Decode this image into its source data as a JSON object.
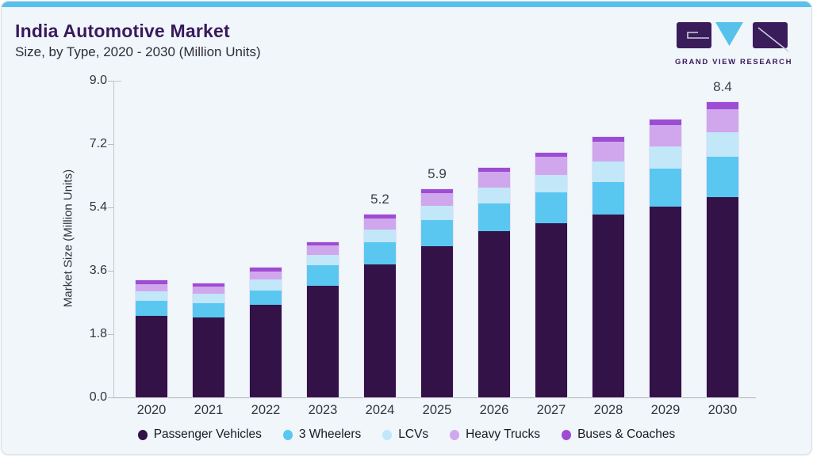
{
  "page": {
    "title": "India Automotive Market",
    "subtitle": "Size, by Type, 2020 - 2030 (Million Units)",
    "brand_name": "GRAND VIEW RESEARCH",
    "colors": {
      "accent_bar": "#57c1ec",
      "card_bg": "#f0f6fa",
      "title": "#39195c",
      "logo_block": "#3b1c5a",
      "logo_triangle": "#56c2ec"
    }
  },
  "chart_data": {
    "type": "bar",
    "stacked": true,
    "title": "India Automotive Market",
    "subtitle": "Size, by Type, 2020 - 2030 (Million Units)",
    "xlabel": "",
    "ylabel": "Market Size (Million Units)",
    "ylim": [
      0,
      9
    ],
    "yticks": [
      "0.0",
      "1.8",
      "3.6",
      "5.4",
      "7.2",
      "9.0"
    ],
    "grid": false,
    "legend_position": "bottom",
    "categories": [
      "2020",
      "2021",
      "2022",
      "2023",
      "2024",
      "2025",
      "2026",
      "2027",
      "2028",
      "2029",
      "2030"
    ],
    "series": [
      {
        "name": "Passenger Vehicles",
        "color": "#321247",
        "values": [
          2.32,
          2.28,
          2.63,
          3.18,
          3.77,
          4.3,
          4.72,
          4.94,
          5.19,
          5.42,
          5.7
        ]
      },
      {
        "name": "3 Wheelers",
        "color": "#5ac7f1",
        "values": [
          0.42,
          0.4,
          0.4,
          0.57,
          0.63,
          0.75,
          0.79,
          0.89,
          0.93,
          1.09,
          1.14
        ]
      },
      {
        "name": "LCVs",
        "color": "#c1e7f9",
        "values": [
          0.28,
          0.26,
          0.32,
          0.29,
          0.36,
          0.39,
          0.45,
          0.49,
          0.59,
          0.62,
          0.7
        ]
      },
      {
        "name": "Heavy Trucks",
        "color": "#d0a7ec",
        "values": [
          0.19,
          0.2,
          0.22,
          0.28,
          0.33,
          0.37,
          0.46,
          0.52,
          0.56,
          0.6,
          0.66
        ]
      },
      {
        "name": "Buses & Coaches",
        "color": "#9d4cd4",
        "values": [
          0.12,
          0.09,
          0.11,
          0.1,
          0.11,
          0.11,
          0.1,
          0.11,
          0.14,
          0.17,
          0.2
        ]
      }
    ],
    "totals": [
      3.33,
      3.23,
      3.68,
      4.42,
      5.2,
      5.92,
      6.52,
      6.95,
      7.41,
      7.9,
      8.4
    ],
    "bar_labels": {
      "2024": "5.2",
      "2025": "5.9",
      "2030": "8.4"
    }
  }
}
